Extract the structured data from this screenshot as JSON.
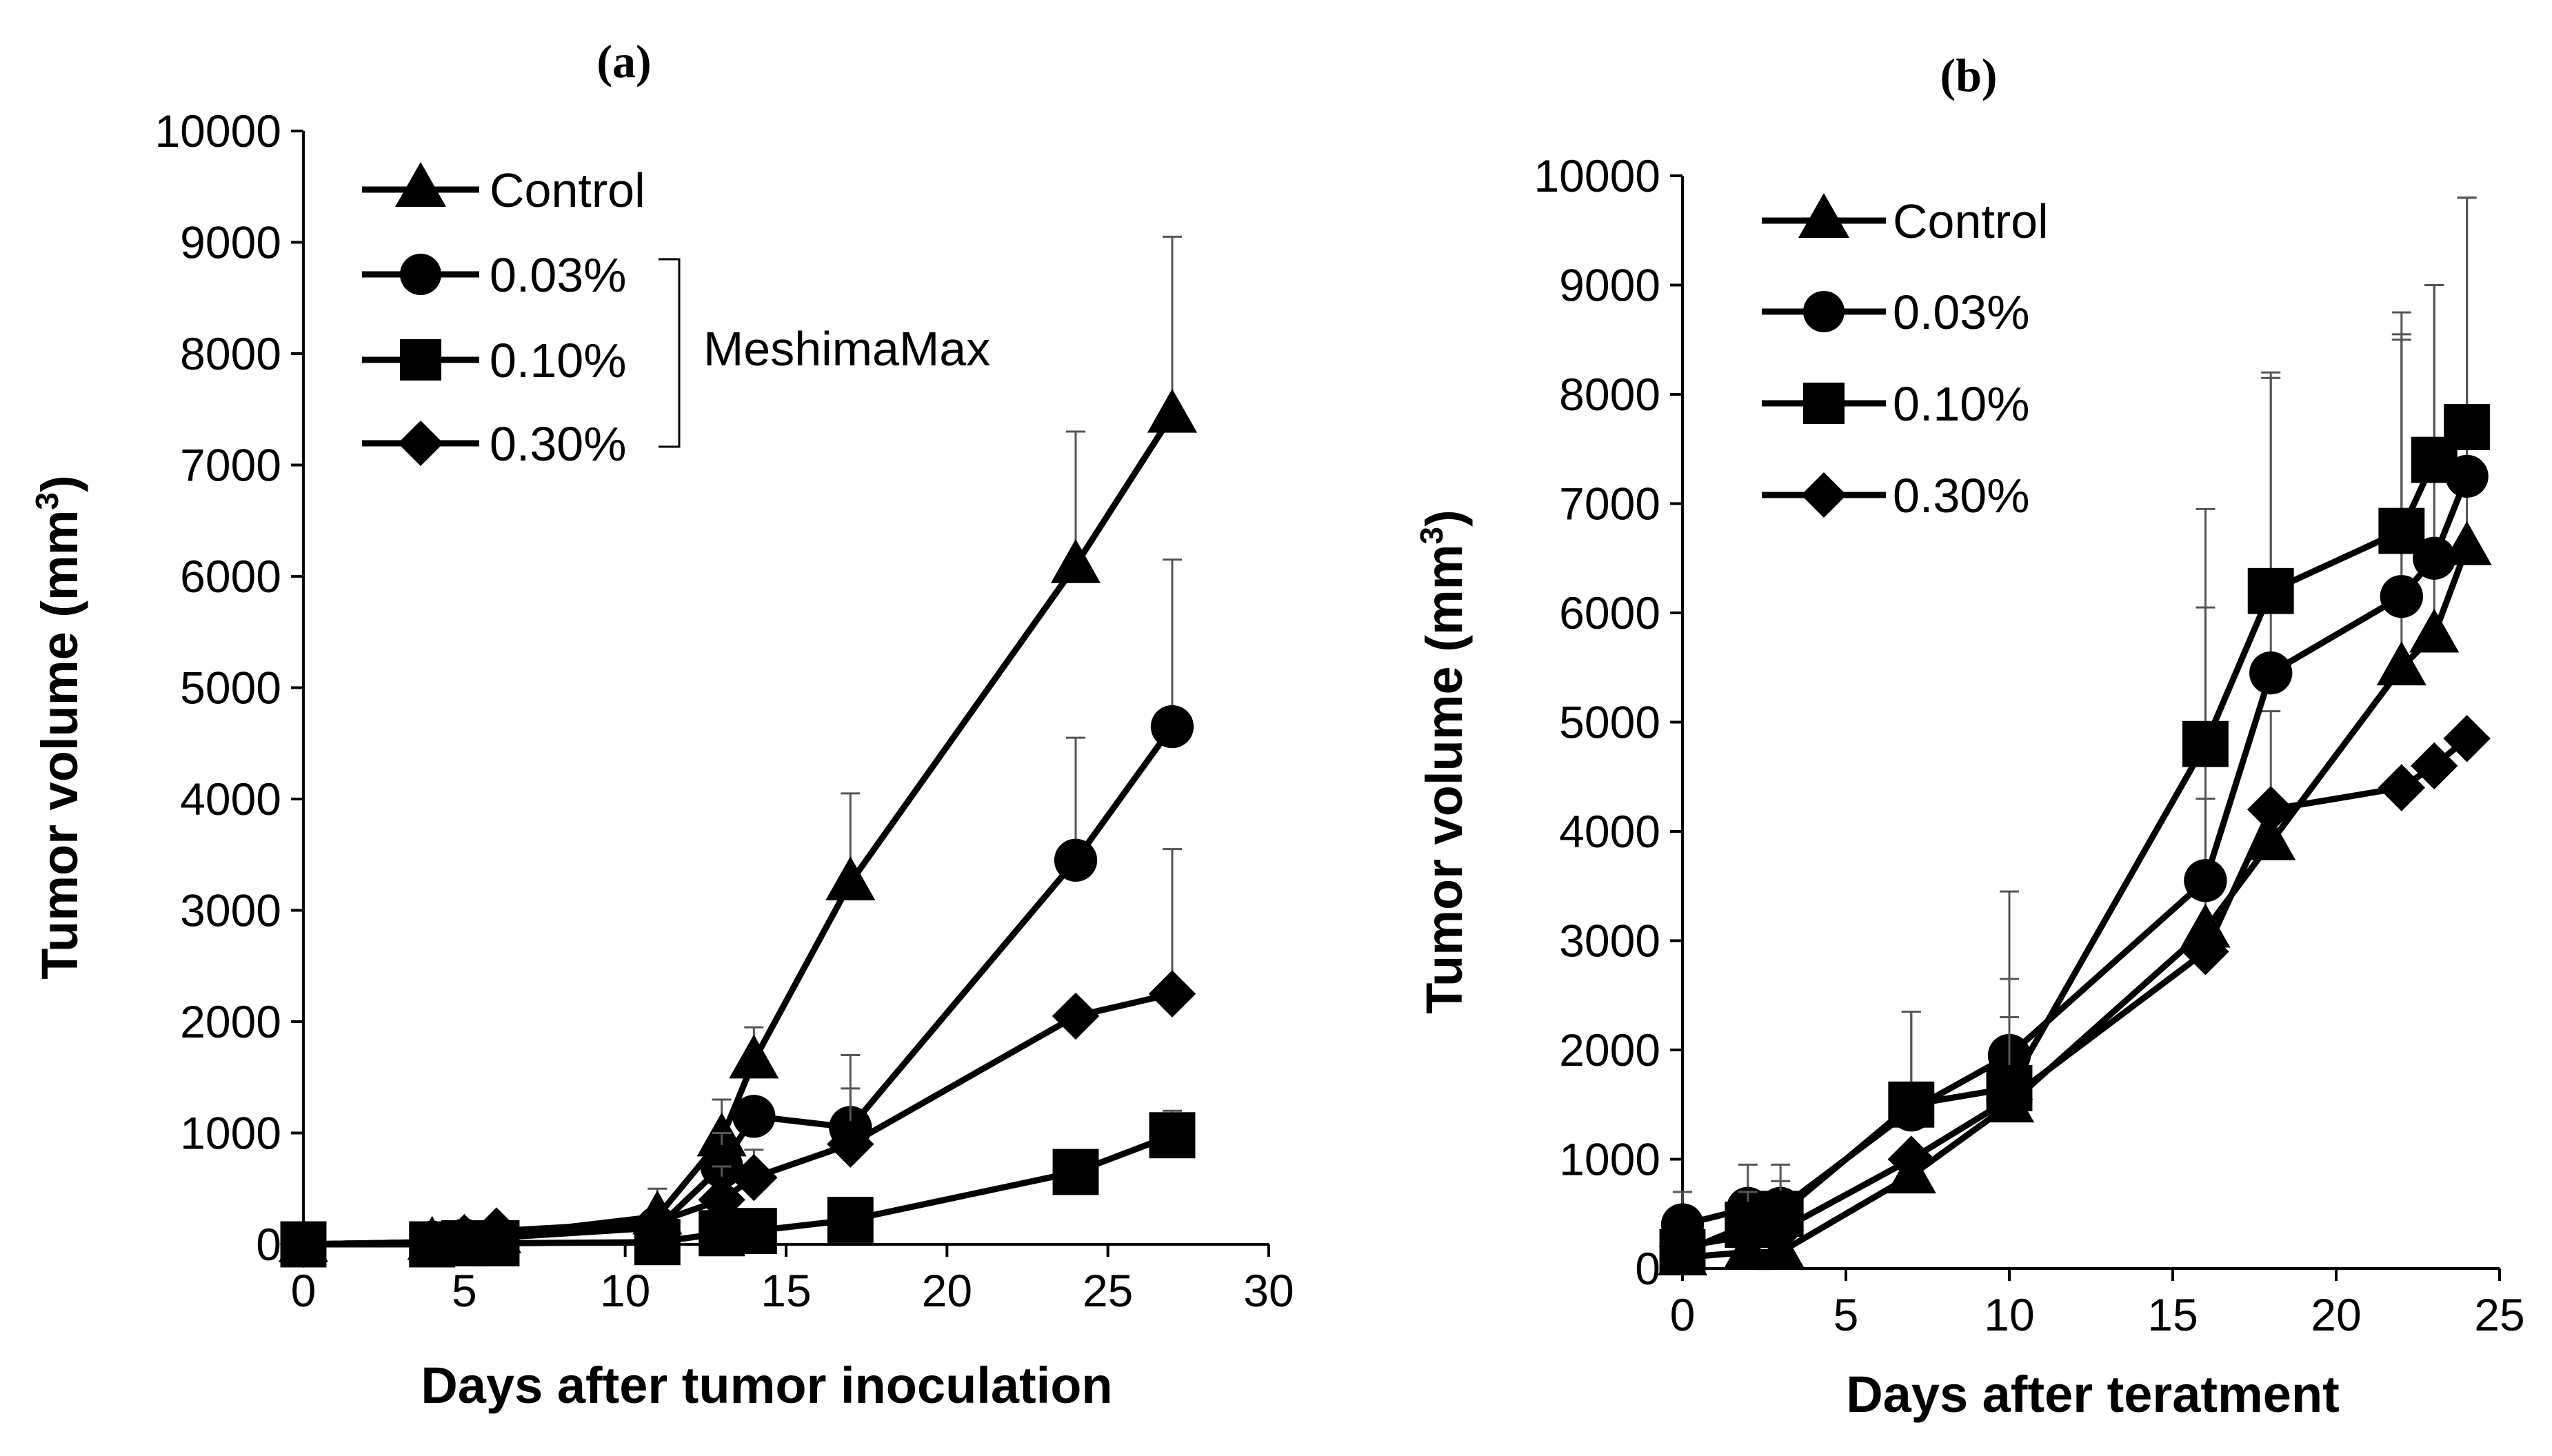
{
  "chart_data": [
    {
      "type": "line",
      "panel": "(a)",
      "xlabel": "Days after tumor inoculation",
      "ylabel_main": "Tumor volume (mm",
      "ylabel_sup": "3",
      "ylabel_close": ")",
      "xlim": [
        0,
        30
      ],
      "ylim": [
        0,
        10000
      ],
      "x_ticks": [
        0,
        5,
        10,
        15,
        20,
        25,
        30
      ],
      "y_ticks": [
        0,
        1000,
        2000,
        3000,
        4000,
        5000,
        6000,
        7000,
        8000,
        9000,
        10000
      ],
      "legend_group_label": "MeshimaMax",
      "series": [
        {
          "name": "Control",
          "marker": "triangle",
          "x": [
            0,
            4,
            5,
            6,
            11,
            13,
            14,
            17,
            24,
            27
          ],
          "y": [
            0,
            20,
            40,
            80,
            250,
            950,
            1650,
            3250,
            6100,
            7450
          ],
          "err": [
            0,
            0,
            0,
            0,
            250,
            350,
            300,
            800,
            1200,
            1600
          ]
        },
        {
          "name": "0.03%",
          "marker": "circle",
          "x": [
            0,
            4,
            5,
            6,
            11,
            13,
            14,
            17,
            24,
            27
          ],
          "y": [
            0,
            20,
            40,
            60,
            150,
            700,
            1150,
            1050,
            3450,
            4650
          ],
          "err": [
            0,
            0,
            0,
            0,
            150,
            300,
            0,
            650,
            1100,
            1500
          ]
        },
        {
          "name": "0.10%",
          "marker": "square",
          "x": [
            0,
            4,
            5,
            6,
            11,
            13,
            14,
            17,
            24,
            27
          ],
          "y": [
            0,
            0,
            10,
            10,
            20,
            100,
            120,
            220,
            650,
            980
          ],
          "err": [
            0,
            0,
            0,
            0,
            0,
            50,
            50,
            80,
            0,
            220
          ]
        },
        {
          "name": "0.30%",
          "marker": "diamond",
          "x": [
            0,
            4,
            5,
            6,
            11,
            13,
            14,
            17,
            24,
            27
          ],
          "y": [
            0,
            20,
            60,
            120,
            200,
            400,
            600,
            900,
            2050,
            2250
          ],
          "err": [
            0,
            0,
            0,
            0,
            100,
            300,
            250,
            500,
            0,
            1300
          ]
        }
      ]
    },
    {
      "type": "line",
      "panel": "(b)",
      "xlabel": "Days after teratment",
      "ylabel_main": "Tumor volume (mm",
      "ylabel_sup": "3",
      "ylabel_close": ")",
      "xlim": [
        0,
        25
      ],
      "ylim": [
        0,
        10000
      ],
      "x_ticks": [
        0,
        5,
        10,
        15,
        20,
        25
      ],
      "y_ticks": [
        0,
        1000,
        2000,
        3000,
        4000,
        5000,
        6000,
        7000,
        8000,
        9000,
        10000
      ],
      "series": [
        {
          "name": "Control",
          "marker": "triangle",
          "x": [
            0,
            2,
            3,
            7,
            10,
            16,
            18,
            22,
            23,
            24
          ],
          "y": [
            100,
            150,
            150,
            850,
            1500,
            3100,
            3900,
            5500,
            5800,
            6600
          ],
          "err": [
            0,
            0,
            0,
            0,
            800,
            1200,
            1200,
            3000,
            3200,
            3200
          ]
        },
        {
          "name": "0.03%",
          "marker": "circle",
          "x": [
            0,
            2,
            3,
            7,
            10,
            16,
            18,
            22,
            23,
            24
          ],
          "y": [
            400,
            550,
            550,
            1450,
            1950,
            3550,
            5450,
            6150,
            6500,
            7250
          ],
          "err": [
            300,
            400,
            400,
            900,
            1500,
            2500,
            2700,
            2600,
            2500,
            2550
          ]
        },
        {
          "name": "0.10%",
          "marker": "square",
          "x": [
            0,
            2,
            3,
            7,
            10,
            16,
            18,
            22,
            23,
            24
          ],
          "y": [
            150,
            400,
            500,
            1500,
            1650,
            4800,
            6200,
            6750,
            7400,
            7700
          ],
          "err": [
            200,
            300,
            300,
            850,
            1000,
            2150,
            2000,
            1800,
            1600,
            2100
          ]
        },
        {
          "name": "0.30%",
          "marker": "diamond",
          "x": [
            0,
            2,
            3,
            7,
            10,
            16,
            18,
            22,
            23,
            24
          ],
          "y": [
            200,
            300,
            350,
            1000,
            1550,
            2900,
            4200,
            4400,
            4600,
            4850
          ],
          "err": [
            0,
            0,
            0,
            0,
            0,
            0,
            0,
            0,
            0,
            0
          ]
        }
      ]
    }
  ]
}
